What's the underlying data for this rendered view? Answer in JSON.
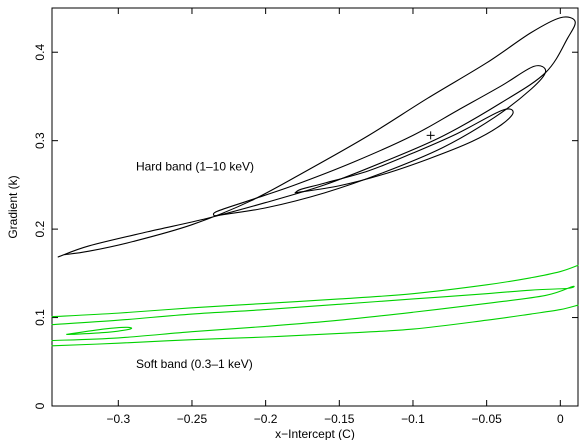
{
  "chart_data": {
    "type": "contour",
    "title": "",
    "xlabel": "x−Intercept (C)",
    "ylabel": "Gradient (k)",
    "xlim": [
      -0.345,
      0.012
    ],
    "ylim": [
      0,
      0.45
    ],
    "xticks": [
      -0.3,
      -0.25,
      -0.2,
      -0.15,
      -0.1,
      -0.05,
      0
    ],
    "xtick_labels": [
      "−0.3",
      "−0.25",
      "−0.2",
      "−0.15",
      "−0.1",
      "−0.05",
      "0"
    ],
    "yticks": [
      0,
      0.1,
      0.2,
      0.3,
      0.4
    ],
    "ytick_labels": [
      "0",
      "0.1",
      "0.2",
      "0.3",
      "0.4"
    ],
    "grid": false,
    "legend": "none",
    "annotations": [
      {
        "name": "hard-band-label",
        "text": "Hard band (1–10 keV)",
        "x": -0.288,
        "y": 0.266
      },
      {
        "name": "soft-band-label",
        "text": "Soft band (0.3–1 keV)",
        "x": -0.288,
        "y": 0.043
      }
    ],
    "series": [
      {
        "band": "hard",
        "color": "#000000",
        "best_fit_marker": {
          "x": -0.088,
          "y": 0.306
        },
        "contours": [
          {
            "level": "outer",
            "points": [
              [
                -0.337,
                0.171
              ],
              [
                -0.34,
                0.169
              ],
              [
                -0.32,
                0.181
              ],
              [
                -0.28,
                0.197
              ],
              [
                -0.24,
                0.212
              ],
              [
                -0.2,
                0.23
              ],
              [
                -0.16,
                0.25
              ],
              [
                -0.12,
                0.276
              ],
              [
                -0.08,
                0.305
              ],
              [
                -0.04,
                0.343
              ],
              [
                -0.01,
                0.377
              ],
              [
                0.005,
                0.416
              ],
              [
                0.01,
                0.435
              ],
              [
                0.0,
                0.439
              ],
              [
                -0.02,
                0.422
              ],
              [
                -0.05,
                0.388
              ],
              [
                -0.09,
                0.348
              ],
              [
                -0.13,
                0.306
              ],
              [
                -0.17,
                0.268
              ],
              [
                -0.21,
                0.232
              ],
              [
                -0.25,
                0.205
              ],
              [
                -0.29,
                0.186
              ],
              [
                -0.32,
                0.175
              ],
              [
                -0.337,
                0.171
              ]
            ]
          },
          {
            "level": "middle",
            "points": [
              [
                -0.235,
                0.215
              ],
              [
                -0.2,
                0.224
              ],
              [
                -0.16,
                0.241
              ],
              [
                -0.12,
                0.264
              ],
              [
                -0.08,
                0.292
              ],
              [
                -0.045,
                0.326
              ],
              [
                -0.02,
                0.358
              ],
              [
                -0.01,
                0.378
              ],
              [
                -0.018,
                0.384
              ],
              [
                -0.04,
                0.362
              ],
              [
                -0.07,
                0.334
              ],
              [
                -0.1,
                0.306
              ],
              [
                -0.14,
                0.276
              ],
              [
                -0.18,
                0.25
              ],
              [
                -0.21,
                0.233
              ],
              [
                -0.233,
                0.22
              ],
              [
                -0.235,
                0.215
              ]
            ]
          },
          {
            "level": "inner",
            "points": [
              [
                -0.18,
                0.241
              ],
              [
                -0.15,
                0.249
              ],
              [
                -0.12,
                0.262
              ],
              [
                -0.09,
                0.279
              ],
              [
                -0.06,
                0.299
              ],
              [
                -0.04,
                0.318
              ],
              [
                -0.032,
                0.332
              ],
              [
                -0.04,
                0.334
              ],
              [
                -0.07,
                0.308
              ],
              [
                -0.1,
                0.286
              ],
              [
                -0.13,
                0.266
              ],
              [
                -0.16,
                0.252
              ],
              [
                -0.176,
                0.245
              ],
              [
                -0.18,
                0.241
              ]
            ]
          }
        ]
      },
      {
        "band": "soft",
        "color": "#00d200",
        "contours": [
          {
            "level": "outer",
            "points": [
              [
                -0.345,
                0.101
              ],
              [
                -0.3,
                0.105
              ],
              [
                -0.25,
                0.111
              ],
              [
                -0.2,
                0.116
              ],
              [
                -0.15,
                0.121
              ],
              [
                -0.1,
                0.127
              ],
              [
                -0.05,
                0.137
              ],
              [
                -0.02,
                0.145
              ],
              [
                0.0,
                0.152
              ],
              [
                0.012,
                0.159
              ]
            ]
          },
          {
            "level": "outer-lower",
            "points": [
              [
                -0.345,
                0.068
              ],
              [
                -0.3,
                0.071
              ],
              [
                -0.25,
                0.075
              ],
              [
                -0.2,
                0.078
              ],
              [
                -0.15,
                0.082
              ],
              [
                -0.1,
                0.087
              ],
              [
                -0.05,
                0.097
              ],
              [
                -0.02,
                0.104
              ],
              [
                0.0,
                0.109
              ],
              [
                0.012,
                0.114
              ]
            ]
          },
          {
            "level": "middle",
            "points": [
              [
                -0.345,
                0.092
              ],
              [
                -0.3,
                0.097
              ],
              [
                -0.25,
                0.104
              ],
              [
                -0.2,
                0.109
              ],
              [
                -0.15,
                0.115
              ],
              [
                -0.1,
                0.121
              ],
              [
                -0.05,
                0.127
              ],
              [
                -0.02,
                0.131
              ],
              [
                0.005,
                0.133
              ],
              [
                0.008,
                0.135
              ],
              [
                -0.01,
                0.125
              ],
              [
                -0.05,
                0.116
              ],
              [
                -0.1,
                0.106
              ],
              [
                -0.15,
                0.097
              ],
              [
                -0.2,
                0.09
              ],
              [
                -0.25,
                0.084
              ],
              [
                -0.3,
                0.077
              ],
              [
                -0.345,
                0.074
              ]
            ]
          },
          {
            "level": "inner",
            "points": [
              [
                -0.335,
                0.081
              ],
              [
                -0.31,
                0.087
              ],
              [
                -0.295,
                0.089
              ],
              [
                -0.292,
                0.087
              ],
              [
                -0.31,
                0.083
              ],
              [
                -0.332,
                0.081
              ],
              [
                -0.335,
                0.081
              ]
            ]
          }
        ]
      }
    ]
  }
}
